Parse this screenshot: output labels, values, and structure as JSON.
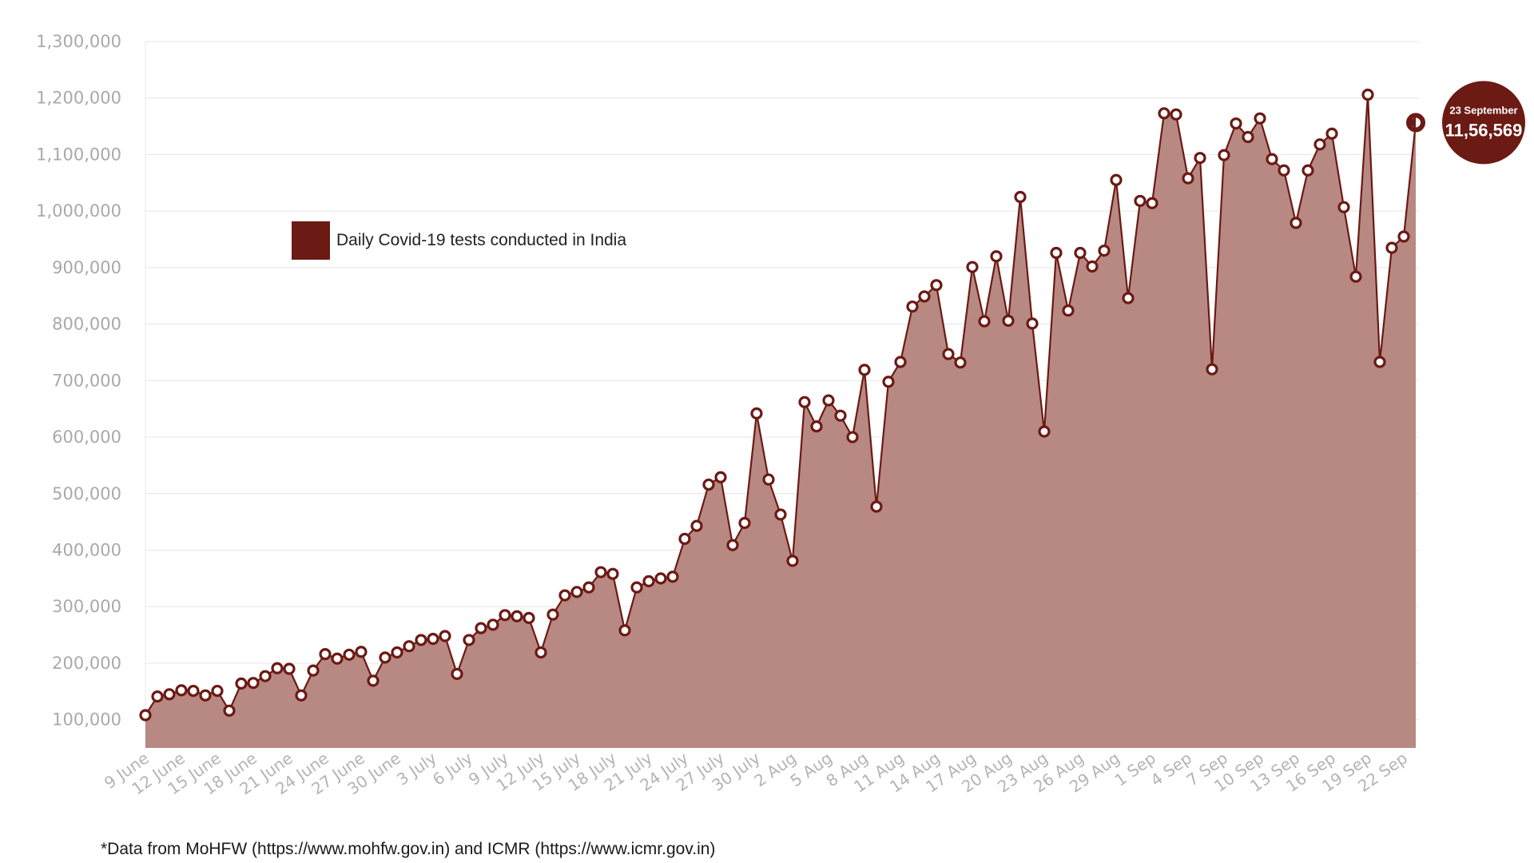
{
  "chart_data": {
    "type": "area",
    "legend": "Daily Covid-19 tests conducted in India",
    "legend_placement": "upper-left inside plot",
    "footnote": "*Data from MoHFW (https://www.mohfw.gov.in) and ICMR (https://www.icmr.gov.in)",
    "ylim": [
      50000,
      1300000
    ],
    "yticks": [
      100000,
      200000,
      300000,
      400000,
      500000,
      600000,
      700000,
      800000,
      900000,
      1000000,
      1100000,
      1200000,
      1300000
    ],
    "ytick_labels": [
      "100,000",
      "200,000",
      "300,000",
      "400,000",
      "500,000",
      "600,000",
      "700,000",
      "800,000",
      "900,000",
      "1,000,000",
      "1,100,000",
      "1,200,000",
      "1,300,000"
    ],
    "grid": true,
    "x_start": "2020-06-09",
    "x_end": "2020-09-23",
    "xtick_labels": [
      "9 June",
      "12 June",
      "15 June",
      "18 June",
      "21 June",
      "24 June",
      "27 June",
      "30 June",
      "3 July",
      "6 July",
      "9 July",
      "12 July",
      "15 July",
      "18 July",
      "21 July",
      "24 July",
      "27 July",
      "30 July",
      "2 Aug",
      "5 Aug",
      "8 Aug",
      "11 Aug",
      "14 Aug",
      "17 Aug",
      "20 Aug",
      "23 Aug",
      "26 Aug",
      "29 Aug",
      "1 Sep",
      "4 Sep",
      "7 Sep",
      "10 Sep",
      "13 Sep",
      "16 Sep",
      "19 Sep",
      "22 Sep"
    ],
    "series": [
      {
        "name": "Daily Covid-19 tests conducted in India",
        "color": "#6b1a14",
        "fill": "#b88982",
        "values": [
          108000,
          141000,
          145000,
          152000,
          151000,
          143000,
          151000,
          116000,
          164000,
          165000,
          177000,
          191000,
          190000,
          143000,
          187000,
          216000,
          208000,
          215000,
          220000,
          169000,
          210000,
          219000,
          230000,
          241000,
          243000,
          248000,
          181000,
          241000,
          262000,
          268000,
          285000,
          283000,
          280000,
          219000,
          286000,
          320000,
          326000,
          334000,
          361000,
          358000,
          258000,
          334000,
          345000,
          350000,
          353000,
          420000,
          443000,
          516000,
          529000,
          409000,
          448000,
          642000,
          525000,
          463000,
          381000,
          662000,
          619000,
          665000,
          638000,
          600000,
          719000,
          477000,
          698000,
          733000,
          831000,
          849000,
          869000,
          747000,
          732000,
          901000,
          805000,
          920000,
          806000,
          1025000,
          801000,
          610000,
          926000,
          824000,
          926000,
          902000,
          930000,
          1055000,
          846000,
          1018000,
          1014000,
          1173000,
          1171000,
          1058000,
          1094000,
          720000,
          1099000,
          1155000,
          1131000,
          1164000,
          1092000,
          1072000,
          979000,
          1072000,
          1118000,
          1137000,
          1007000,
          884000,
          1206000,
          733000,
          935000,
          955000,
          1156569
        ]
      }
    ],
    "callout": {
      "date_label": "23 September",
      "value_label": "11,56,569"
    }
  }
}
